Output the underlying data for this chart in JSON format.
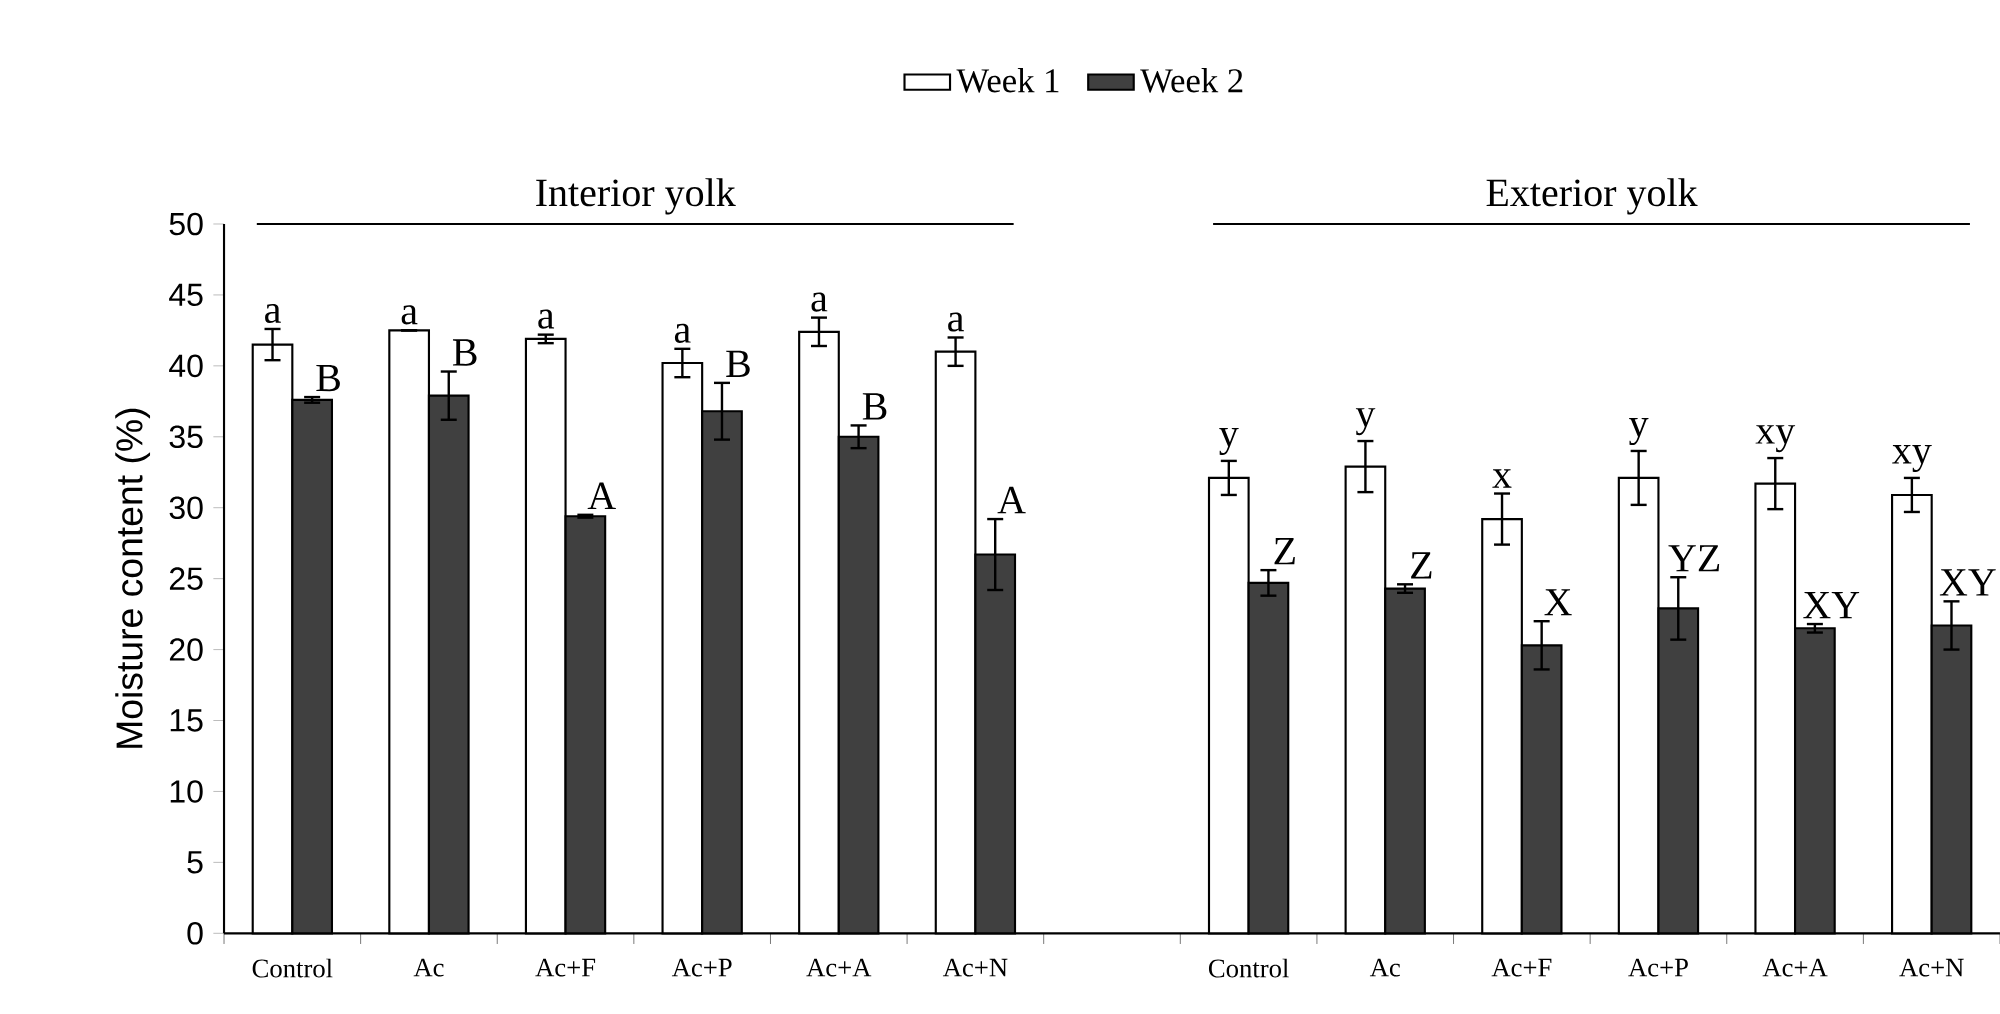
{
  "chart_data": {
    "type": "bar",
    "categories": [
      "Control",
      "Ac",
      "Ac+F",
      "Ac+P",
      "Ac+A",
      "Ac+N",
      null,
      "Control",
      "Ac",
      "Ac+F",
      "Ac+P",
      "Ac+A",
      "Ac+N"
    ],
    "ylabel": "Moisture content (%)",
    "ylim": [
      0,
      50
    ],
    "yticks": [
      0,
      5,
      10,
      15,
      20,
      25,
      30,
      35,
      40,
      45,
      50
    ],
    "legend": "top",
    "annotations": [
      "Interior yolk",
      "Exterior yolk"
    ],
    "series": [
      {
        "name": "Week 1",
        "color": "#ffffff",
        "values": [
          41.5,
          42.5,
          41.9,
          40.2,
          42.4,
          41.0,
          null,
          32.1,
          32.9,
          29.2,
          32.1,
          31.7,
          30.9
        ],
        "errors": [
          1.1,
          null,
          0.3,
          1.0,
          1.0,
          1.0,
          null,
          1.2,
          1.8,
          1.8,
          1.9,
          1.8,
          1.2
        ],
        "value_labels": [
          "a",
          "a",
          "a",
          "a",
          "a",
          "a",
          null,
          "y",
          "y",
          "x",
          "y",
          "xy",
          "xy"
        ]
      },
      {
        "name": "Week 2",
        "color": "#404040",
        "values": [
          37.6,
          37.9,
          29.4,
          36.8,
          35.0,
          26.7,
          null,
          24.7,
          24.3,
          20.3,
          22.9,
          21.5,
          21.7
        ],
        "errors": [
          0.2,
          1.7,
          0.1,
          2.0,
          0.8,
          2.5,
          null,
          0.9,
          0.3,
          1.7,
          2.2,
          0.3,
          1.7
        ],
        "value_labels": [
          "B",
          "B",
          "A",
          "B",
          "B",
          "A",
          null,
          "Z",
          "Z",
          "X",
          "YZ",
          "XY",
          "XY"
        ]
      }
    ]
  }
}
